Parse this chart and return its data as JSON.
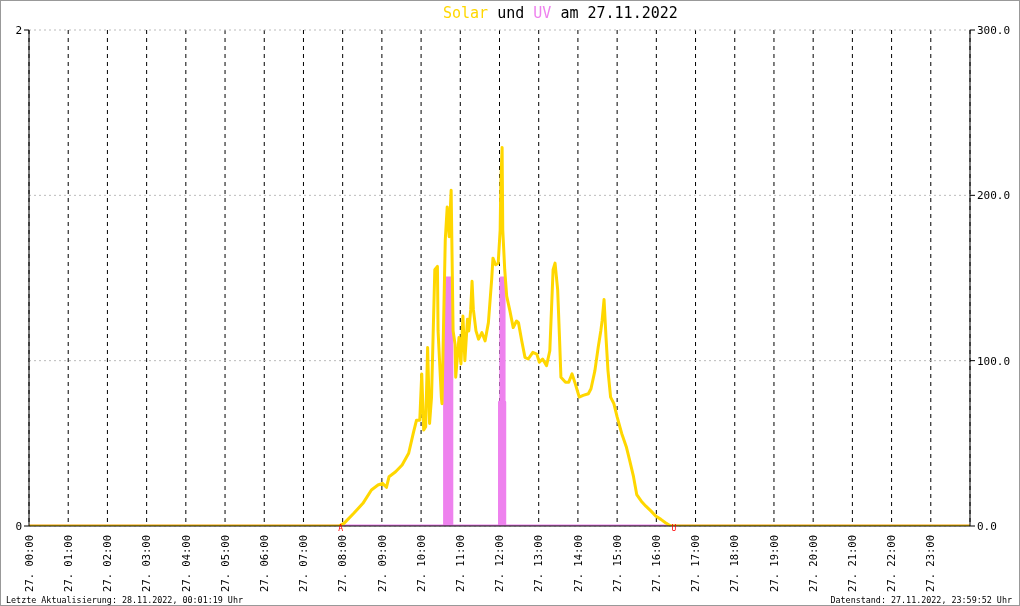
{
  "chart_data": {
    "type": "line",
    "title": "Solar und UV am 27.11.2022",
    "annotations": [
      {
        "text": "A",
        "x": "2022-11-27T07:57",
        "y": 0
      },
      {
        "text": "U",
        "x": "2022-11-27T16:27",
        "y": 0
      },
      "Letzte Aktualisierung: 28.11.2022, 00:01:19 Uhr",
      "Datenstand: 27.11.2022, 23:59:52 Uhr"
    ],
    "xlim": [
      "2022-11-27T00:00",
      "2022-11-28T00:00"
    ],
    "xticks": [
      {
        "value": "2022-11-27T00:00",
        "label": "27. 00:00"
      },
      {
        "value": "2022-11-27T01:00",
        "label": "27. 01:00"
      },
      {
        "value": "2022-11-27T02:00",
        "label": "27. 02:00"
      },
      {
        "value": "2022-11-27T03:00",
        "label": "27. 03:00"
      },
      {
        "value": "2022-11-27T04:00",
        "label": "27. 04:00"
      },
      {
        "value": "2022-11-27T05:00",
        "label": "27. 05:00"
      },
      {
        "value": "2022-11-27T06:00",
        "label": "27. 06:00"
      },
      {
        "value": "2022-11-27T07:00",
        "label": "27. 07:00"
      },
      {
        "value": "2022-11-27T08:00",
        "label": "27. 08:00"
      },
      {
        "value": "2022-11-27T09:00",
        "label": "27. 09:00"
      },
      {
        "value": "2022-11-27T10:00",
        "label": "27. 10:00"
      },
      {
        "value": "2022-11-27T11:00",
        "label": "27. 11:00"
      },
      {
        "value": "2022-11-27T12:00",
        "label": "27. 12:00"
      },
      {
        "value": "2022-11-27T13:00",
        "label": "27. 13:00"
      },
      {
        "value": "2022-11-27T14:00",
        "label": "27. 14:00"
      },
      {
        "value": "2022-11-27T15:00",
        "label": "27. 15:00"
      },
      {
        "value": "2022-11-27T16:00",
        "label": "27. 16:00"
      },
      {
        "value": "2022-11-27T17:00",
        "label": "27. 17:00"
      },
      {
        "value": "2022-11-27T18:00",
        "label": "27. 18:00"
      },
      {
        "value": "2022-11-27T19:00",
        "label": "27. 19:00"
      },
      {
        "value": "2022-11-27T20:00",
        "label": "27. 20:00"
      },
      {
        "value": "2022-11-27T21:00",
        "label": "27. 21:00"
      },
      {
        "value": "2022-11-27T22:00",
        "label": "27. 22:00"
      },
      {
        "value": "2022-11-27T23:00",
        "label": "27. 23:00"
      }
    ],
    "ylim": [
      0,
      2
    ],
    "yticks": [
      0,
      2
    ],
    "y2lim": [
      0,
      300
    ],
    "y2ticks": [
      {
        "value": 0,
        "label": "0.0"
      },
      {
        "value": 100,
        "label": "100.0"
      },
      {
        "value": 200,
        "label": "200.0"
      },
      {
        "value": 300,
        "label": "300.0"
      }
    ],
    "grid": true,
    "series": [
      {
        "axis": "y2",
        "color": "#ffd700",
        "x": [
          "2022-11-27T00:00",
          "2022-11-27T07:54",
          "2022-11-27T08:02",
          "2022-11-27T08:17",
          "2022-11-27T08:31",
          "2022-11-27T08:44",
          "2022-11-27T08:54",
          "2022-11-27T09:01",
          "2022-11-27T09:07",
          "2022-11-27T09:11",
          "2022-11-27T09:21",
          "2022-11-27T09:31",
          "2022-11-27T09:41",
          "2022-11-27T09:48",
          "2022-11-27T09:53",
          "2022-11-27T09:58",
          "2022-11-27T10:01",
          "2022-11-27T10:04",
          "2022-11-27T10:07",
          "2022-11-27T10:10",
          "2022-11-27T10:13",
          "2022-11-27T10:16",
          "2022-11-27T10:21",
          "2022-11-27T10:25",
          "2022-11-27T10:26",
          "2022-11-27T10:31",
          "2022-11-27T10:32",
          "2022-11-27T10:37",
          "2022-11-27T10:40",
          "2022-11-27T10:43",
          "2022-11-27T10:46",
          "2022-11-27T10:49",
          "2022-11-27T10:52",
          "2022-11-27T10:53",
          "2022-11-27T10:58",
          "2022-11-27T11:01",
          "2022-11-27T11:04",
          "2022-11-27T11:07",
          "2022-11-27T11:11",
          "2022-11-27T11:13",
          "2022-11-27T11:16",
          "2022-11-27T11:18",
          "2022-11-27T11:20",
          "2022-11-27T11:24",
          "2022-11-27T11:28",
          "2022-11-27T11:33",
          "2022-11-27T11:38",
          "2022-11-27T11:43",
          "2022-11-27T11:48",
          "2022-11-27T11:50",
          "2022-11-27T11:54",
          "2022-11-27T11:58",
          "2022-11-27T12:01",
          "2022-11-27T12:02",
          "2022-11-27T12:04",
          "2022-11-27T12:05",
          "2022-11-27T12:08",
          "2022-11-27T12:11",
          "2022-11-27T12:16",
          "2022-11-27T12:21",
          "2022-11-27T12:26",
          "2022-11-27T12:29",
          "2022-11-27T12:34",
          "2022-11-27T12:39",
          "2022-11-27T12:44",
          "2022-11-27T12:51",
          "2022-11-27T12:57",
          "2022-11-27T13:01",
          "2022-11-27T13:06",
          "2022-11-27T13:12",
          "2022-11-27T13:17",
          "2022-11-27T13:22",
          "2022-11-27T13:25",
          "2022-11-27T13:29",
          "2022-11-27T13:32",
          "2022-11-27T13:34",
          "2022-11-27T13:41",
          "2022-11-27T13:46",
          "2022-11-27T13:51",
          "2022-11-27T13:56",
          "2022-11-27T14:02",
          "2022-11-27T14:08",
          "2022-11-27T14:16",
          "2022-11-27T14:20",
          "2022-11-27T14:26",
          "2022-11-27T14:31",
          "2022-11-27T14:35",
          "2022-11-27T14:37",
          "2022-11-27T14:40",
          "2022-11-27T14:43",
          "2022-11-27T14:46",
          "2022-11-27T14:50",
          "2022-11-27T14:55",
          "2022-11-27T15:00",
          "2022-11-27T15:07",
          "2022-11-27T15:14",
          "2022-11-27T15:19",
          "2022-11-27T15:25",
          "2022-11-27T15:30",
          "2022-11-27T15:37",
          "2022-11-27T15:44",
          "2022-11-27T15:52",
          "2022-11-27T15:59",
          "2022-11-27T16:07",
          "2022-11-27T16:14",
          "2022-11-27T16:22",
          "2022-11-28T00:00"
        ],
        "values": [
          0,
          0,
          1.6,
          7.7,
          13.7,
          21.8,
          24.8,
          25.8,
          23.4,
          29.8,
          32.8,
          36.9,
          44,
          56,
          64,
          64,
          92,
          58,
          60,
          108,
          62,
          78,
          155,
          157,
          118,
          78,
          74,
          173,
          193,
          175,
          203,
          118,
          110,
          90,
          114,
          98,
          127,
          100,
          125,
          118,
          131,
          148,
          131,
          118,
          113,
          117,
          112,
          123,
          149,
          162,
          158,
          159,
          179,
          207,
          229,
          179,
          155,
          139,
          130,
          120,
          124,
          123,
          112,
          102,
          101,
          105,
          104,
          99,
          101,
          97,
          106,
          155,
          159,
          143,
          112,
          90,
          87,
          87,
          92,
          86,
          78,
          79,
          80,
          83,
          94,
          108,
          118,
          124,
          137,
          114,
          94,
          78,
          74,
          66,
          56,
          48,
          40,
          30,
          19,
          15,
          12,
          9,
          6,
          4,
          2,
          0,
          0
        ]
      },
      {
        "type": "area",
        "color": "#ee82ee",
        "x": [
          "2022-11-27T00:00",
          "2022-11-27T10:36",
          "2022-11-27T10:36",
          "2022-11-27T10:47",
          "2022-11-27T10:47",
          "2022-11-27T12:00",
          "2022-11-27T12:00",
          "2022-11-27T12:02",
          "2022-11-27T12:02",
          "2022-11-27T12:07",
          "2022-11-27T12:07",
          "2022-11-27T12:08",
          "2022-11-27T12:08",
          "2022-11-28T00:00"
        ],
        "values": [
          0,
          0,
          1,
          1,
          0,
          0,
          0.5,
          0.5,
          1,
          1,
          0.5,
          0.5,
          0,
          0
        ]
      }
    ]
  }
}
